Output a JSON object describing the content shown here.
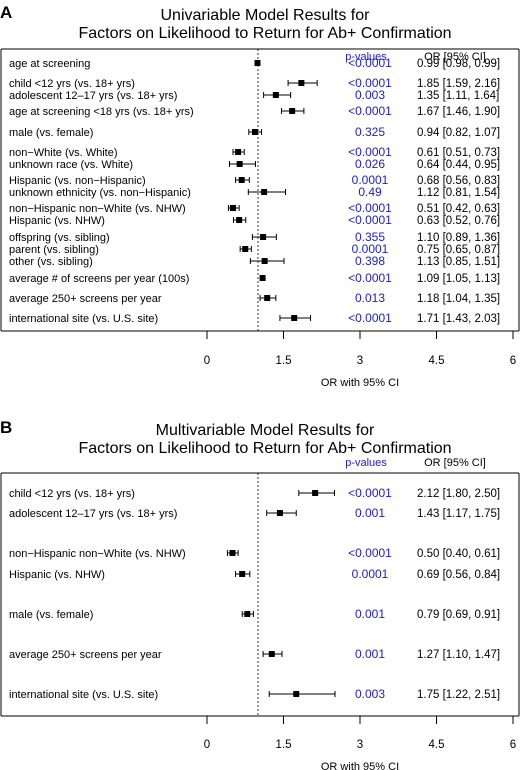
{
  "chart_data": [
    {
      "type": "forest",
      "panel": "A",
      "title_lines": [
        "Univariable Model Results for",
        "Factors on Likelihood to Return for Ab+ Confirmation"
      ],
      "pvalue_header": "p-values",
      "or_header": "OR [95% CI]",
      "xlabel": "OR with 95% CI",
      "xlim": [
        0,
        6
      ],
      "xticks": [
        "0",
        "1.5",
        "3",
        "4.5",
        "6"
      ],
      "reference_line": 1,
      "rows": [
        {
          "label": "age at screening",
          "or": 0.99,
          "lo": 0.98,
          "hi": 0.99,
          "p": "<0.0001",
          "ci_text": "0.99 [0.98, 0.99]"
        },
        {
          "label": "child <12 yrs (vs. 18+ yrs)",
          "or": 1.85,
          "lo": 1.59,
          "hi": 2.16,
          "p": "<0.0001",
          "ci_text": "1.85 [1.59, 2.16]"
        },
        {
          "label": "adolescent 12–17 yrs (vs. 18+ yrs)",
          "or": 1.35,
          "lo": 1.11,
          "hi": 1.64,
          "p": "0.003",
          "ci_text": "1.35 [1.11, 1.64]"
        },
        {
          "label": "age at screening <18 yrs (vs. 18+ yrs)",
          "or": 1.67,
          "lo": 1.46,
          "hi": 1.9,
          "p": "<0.0001",
          "ci_text": "1.67 [1.46, 1.90]"
        },
        {
          "label": "male (vs. female)",
          "or": 0.94,
          "lo": 0.82,
          "hi": 1.07,
          "p": "0.325",
          "ci_text": "0.94 [0.82, 1.07]"
        },
        {
          "label": "non−White (vs. White)",
          "or": 0.61,
          "lo": 0.51,
          "hi": 0.73,
          "p": "<0.0001",
          "ci_text": "0.61 [0.51, 0.73]"
        },
        {
          "label": "unknown race (vs. White)",
          "or": 0.64,
          "lo": 0.44,
          "hi": 0.95,
          "p": "0.026",
          "ci_text": "0.64 [0.44, 0.95]"
        },
        {
          "label": "Hispanic (vs. non−Hispanic)",
          "or": 0.68,
          "lo": 0.56,
          "hi": 0.83,
          "p": "0.0001",
          "ci_text": "0.68 [0.56, 0.83]"
        },
        {
          "label": "unknown ethnicity (vs. non−Hispanic)",
          "or": 1.12,
          "lo": 0.81,
          "hi": 1.54,
          "p": "0.49",
          "ci_text": "1.12 [0.81, 1.54]"
        },
        {
          "label": "non−Hispanic non−White (vs. NHW)",
          "or": 0.51,
          "lo": 0.42,
          "hi": 0.63,
          "p": "<0.0001",
          "ci_text": "0.51 [0.42, 0.63]"
        },
        {
          "label": "Hispanic (vs. NHW)",
          "or": 0.63,
          "lo": 0.52,
          "hi": 0.76,
          "p": "<0.0001",
          "ci_text": "0.63 [0.52, 0.76]"
        },
        {
          "label": "offspring (vs. sibling)",
          "or": 1.1,
          "lo": 0.89,
          "hi": 1.36,
          "p": "0.355",
          "ci_text": "1.10 [0.89, 1.36]"
        },
        {
          "label": "parent (vs. sibling)",
          "or": 0.75,
          "lo": 0.65,
          "hi": 0.87,
          "p": "0.0001",
          "ci_text": "0.75 [0.65, 0.87]"
        },
        {
          "label": "other (vs. sibling)",
          "or": 1.13,
          "lo": 0.85,
          "hi": 1.51,
          "p": "0.398",
          "ci_text": "1.13 [0.85, 1.51]"
        },
        {
          "label": "average # of screens per year (100s)",
          "or": 1.09,
          "lo": 1.05,
          "hi": 1.13,
          "p": "<0.0001",
          "ci_text": "1.09 [1.05, 1.13]"
        },
        {
          "label": "average 250+ screens per year",
          "or": 1.18,
          "lo": 1.04,
          "hi": 1.35,
          "p": "0.013",
          "ci_text": "1.18 [1.04, 1.35]"
        },
        {
          "label": "international site (vs. U.S. site)",
          "or": 1.71,
          "lo": 1.43,
          "hi": 2.03,
          "p": "<0.0001",
          "ci_text": "1.71 [1.43, 2.03]"
        }
      ]
    },
    {
      "type": "forest",
      "panel": "B",
      "title_lines": [
        "Multivariable Model Results for",
        "Factors on Likelihood to Return for Ab+ Confirmation"
      ],
      "pvalue_header": "p-values",
      "or_header": "OR [95% CI]",
      "xlabel": "OR with 95% CI",
      "xlim": [
        0,
        6
      ],
      "xticks": [
        "0",
        "1.5",
        "3",
        "4.5",
        "6"
      ],
      "reference_line": 1,
      "rows": [
        {
          "label": "child <12 yrs (vs. 18+ yrs)",
          "or": 2.12,
          "lo": 1.8,
          "hi": 2.5,
          "p": "<0.0001",
          "ci_text": "2.12 [1.80, 2.50]"
        },
        {
          "label": "adolescent 12–17 yrs (vs. 18+ yrs)",
          "or": 1.43,
          "lo": 1.17,
          "hi": 1.75,
          "p": "0.001",
          "ci_text": "1.43 [1.17, 1.75]"
        },
        {
          "label": "non−Hispanic non−White (vs. NHW)",
          "or": 0.5,
          "lo": 0.4,
          "hi": 0.61,
          "p": "<0.0001",
          "ci_text": "0.50 [0.40, 0.61]"
        },
        {
          "label": "Hispanic (vs. NHW)",
          "or": 0.69,
          "lo": 0.56,
          "hi": 0.84,
          "p": "0.0001",
          "ci_text": "0.69 [0.56, 0.84]"
        },
        {
          "label": "male (vs. female)",
          "or": 0.79,
          "lo": 0.69,
          "hi": 0.91,
          "p": "0.001",
          "ci_text": "0.79 [0.69, 0.91]"
        },
        {
          "label": "average 250+ screens per year",
          "or": 1.27,
          "lo": 1.1,
          "hi": 1.47,
          "p": "0.001",
          "ci_text": "1.27 [1.10, 1.47]"
        },
        {
          "label": "international site (vs. U.S. site)",
          "or": 1.75,
          "lo": 1.22,
          "hi": 2.51,
          "p": "0.003",
          "ci_text": "1.75 [1.22, 2.51]"
        }
      ]
    }
  ]
}
